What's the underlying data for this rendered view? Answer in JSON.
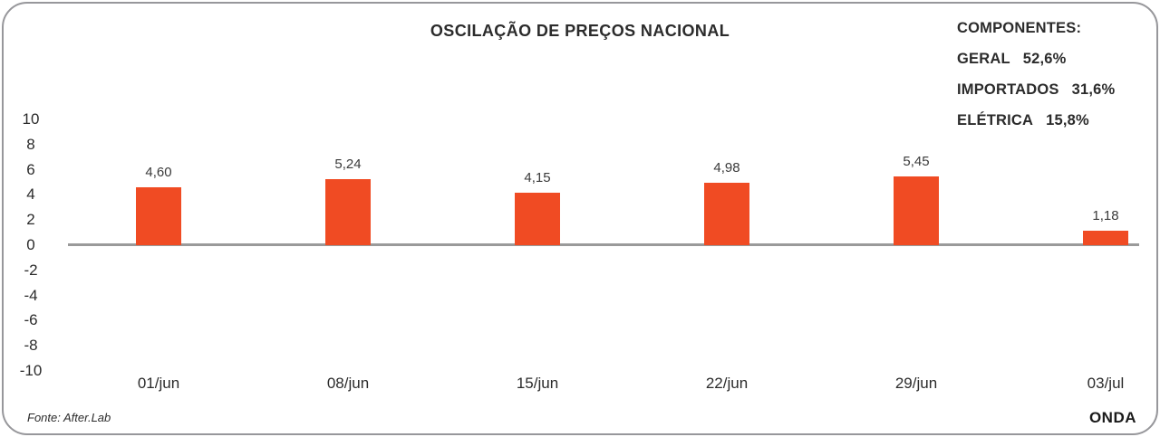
{
  "title": "OSCILAÇÃO DE PREÇOS NACIONAL",
  "components": {
    "heading": "COMPONENTES:",
    "items": [
      {
        "label": "GERAL",
        "value": "52,6%"
      },
      {
        "label": "IMPORTADOS",
        "value": "31,6%"
      },
      {
        "label": "ELÉTRICA",
        "value": "15,8%"
      }
    ]
  },
  "chart_data": {
    "type": "bar",
    "title": "OSCILAÇÃO DE PREÇOS NACIONAL",
    "categories": [
      "01/jun",
      "08/jun",
      "15/jun",
      "22/jun",
      "29/jun",
      "03/jul"
    ],
    "values": [
      4.6,
      5.24,
      4.15,
      4.98,
      5.45,
      1.18
    ],
    "value_labels": [
      "4,60",
      "5,24",
      "4,15",
      "4,98",
      "5,45",
      "1,18"
    ],
    "ylabel": "",
    "xlabel": "",
    "ylim": [
      -10,
      10
    ],
    "yticks": [
      10,
      8,
      6,
      4,
      2,
      0,
      -2,
      -4,
      -6,
      -8,
      -10
    ],
    "grid": false,
    "legend_position": "none",
    "bar_color": "#F04B23"
  },
  "footer": {
    "source": "Fonte: After.Lab",
    "brand": "ONDA"
  },
  "colors": {
    "bar": "#F04B23",
    "axis_line": "#9A9A9A",
    "border": "#97979B",
    "text": "#2B2B2B"
  }
}
